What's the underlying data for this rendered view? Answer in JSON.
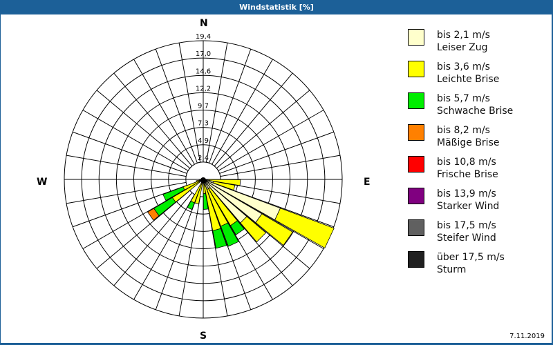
{
  "window": {
    "title": "Windstatistik [%]"
  },
  "footer": {
    "date": "7.11.2019"
  },
  "compass": {
    "n": "N",
    "e": "E",
    "s": "S",
    "w": "W"
  },
  "legend": [
    {
      "range": "bis 2,1 m/s",
      "name": "Leiser Zug",
      "color": "#ffffcc"
    },
    {
      "range": "bis 3,6 m/s",
      "name": "Leichte Brise",
      "color": "#ffff00"
    },
    {
      "range": "bis 5,7 m/s",
      "name": "Schwache Brise",
      "color": "#00ee00"
    },
    {
      "range": "bis 8,2 m/s",
      "name": "Mäßige Brise",
      "color": "#ff8000"
    },
    {
      "range": "bis 10,8 m/s",
      "name": "Frische Brise",
      "color": "#ff0000"
    },
    {
      "range": "bis 13,9 m/s",
      "name": "Starker Wind",
      "color": "#800080"
    },
    {
      "range": "bis 17,5 m/s",
      "name": "Steifer Wind",
      "color": "#606060"
    },
    {
      "range": "über 17,5 m/s",
      "name": "Sturm",
      "color": "#202020"
    }
  ],
  "chart_data": {
    "type": "polar-bar (wind rose)",
    "title": "Windstatistik [%]",
    "radial_ticks": [
      "2,4",
      "4,9",
      "7,3",
      "9,7",
      "12,2",
      "14,6",
      "17,0",
      "19,4"
    ],
    "rmax": 19.4,
    "sectors_deg_step": 10,
    "series_order": [
      "Leiser Zug",
      "Leichte Brise",
      "Schwache Brise",
      "Mäßige Brise"
    ],
    "bars": [
      {
        "dir": 95,
        "segments": [
          0.8,
          4.4,
          0,
          0
        ]
      },
      {
        "dir": 105,
        "segments": [
          1.5,
          3.0,
          0,
          0
        ]
      },
      {
        "dir": 115,
        "segments": [
          11.5,
          8.0,
          0,
          0
        ]
      },
      {
        "dir": 125,
        "segments": [
          9.5,
          5.0,
          0,
          0
        ]
      },
      {
        "dir": 135,
        "segments": [
          8.0,
          3.5,
          0,
          0
        ]
      },
      {
        "dir": 145,
        "segments": [
          1.5,
          6.0,
          1.5,
          0
        ]
      },
      {
        "dir": 155,
        "segments": [
          1.5,
          5.5,
          3.0,
          0
        ]
      },
      {
        "dir": 165,
        "segments": [
          0.8,
          6.5,
          2.5,
          0
        ]
      },
      {
        "dir": 175,
        "segments": [
          0.5,
          1.5,
          2.2,
          0
        ]
      },
      {
        "dir": 195,
        "segments": [
          0.5,
          3.0,
          0,
          0
        ]
      },
      {
        "dir": 205,
        "segments": [
          0.5,
          3.0,
          1.0,
          0
        ]
      },
      {
        "dir": 235,
        "segments": [
          0.5,
          4.5,
          3.0,
          1.0
        ]
      },
      {
        "dir": 245,
        "segments": [
          0.5,
          2.5,
          3.0,
          0
        ]
      },
      {
        "dir": 255,
        "segments": [
          0.5,
          0.5,
          0,
          0
        ]
      }
    ]
  }
}
